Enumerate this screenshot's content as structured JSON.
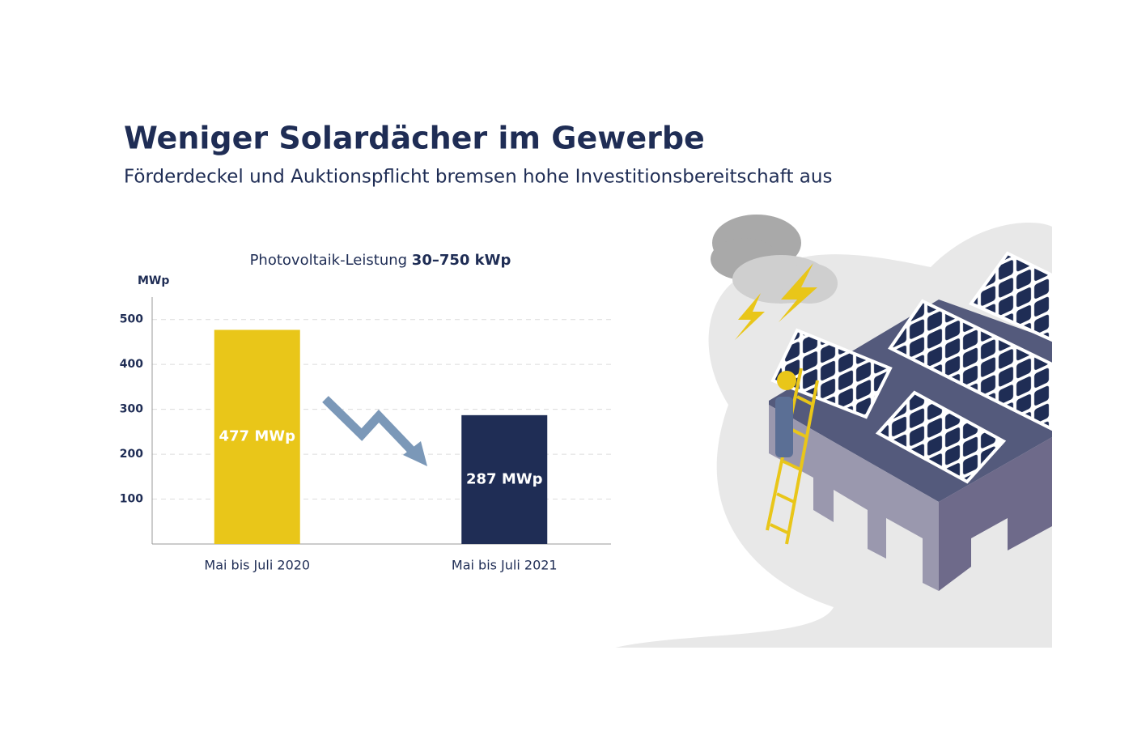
{
  "header": {
    "title": "Weniger Solardächer im Gewerbe",
    "subtitle": "Förderdeckel und Auktionspflicht bremsen hohe Investitionsbereitschaft aus"
  },
  "chart_data": {
    "type": "bar",
    "title": "Photovoltaik-Leistung",
    "title_emphasis": "30–750 kWp",
    "y_label": "MWp",
    "categories": [
      "Mai bis Juli 2020",
      "Mai bis Juli 2021"
    ],
    "values": [
      477,
      287
    ],
    "value_labels": [
      "477 MWp",
      "287 MWp"
    ],
    "colors": [
      "#e9c619",
      "#1f2d55"
    ],
    "ylim": [
      0,
      550
    ],
    "yticks": [
      100,
      200,
      300,
      400,
      500
    ],
    "grid": true
  }
}
